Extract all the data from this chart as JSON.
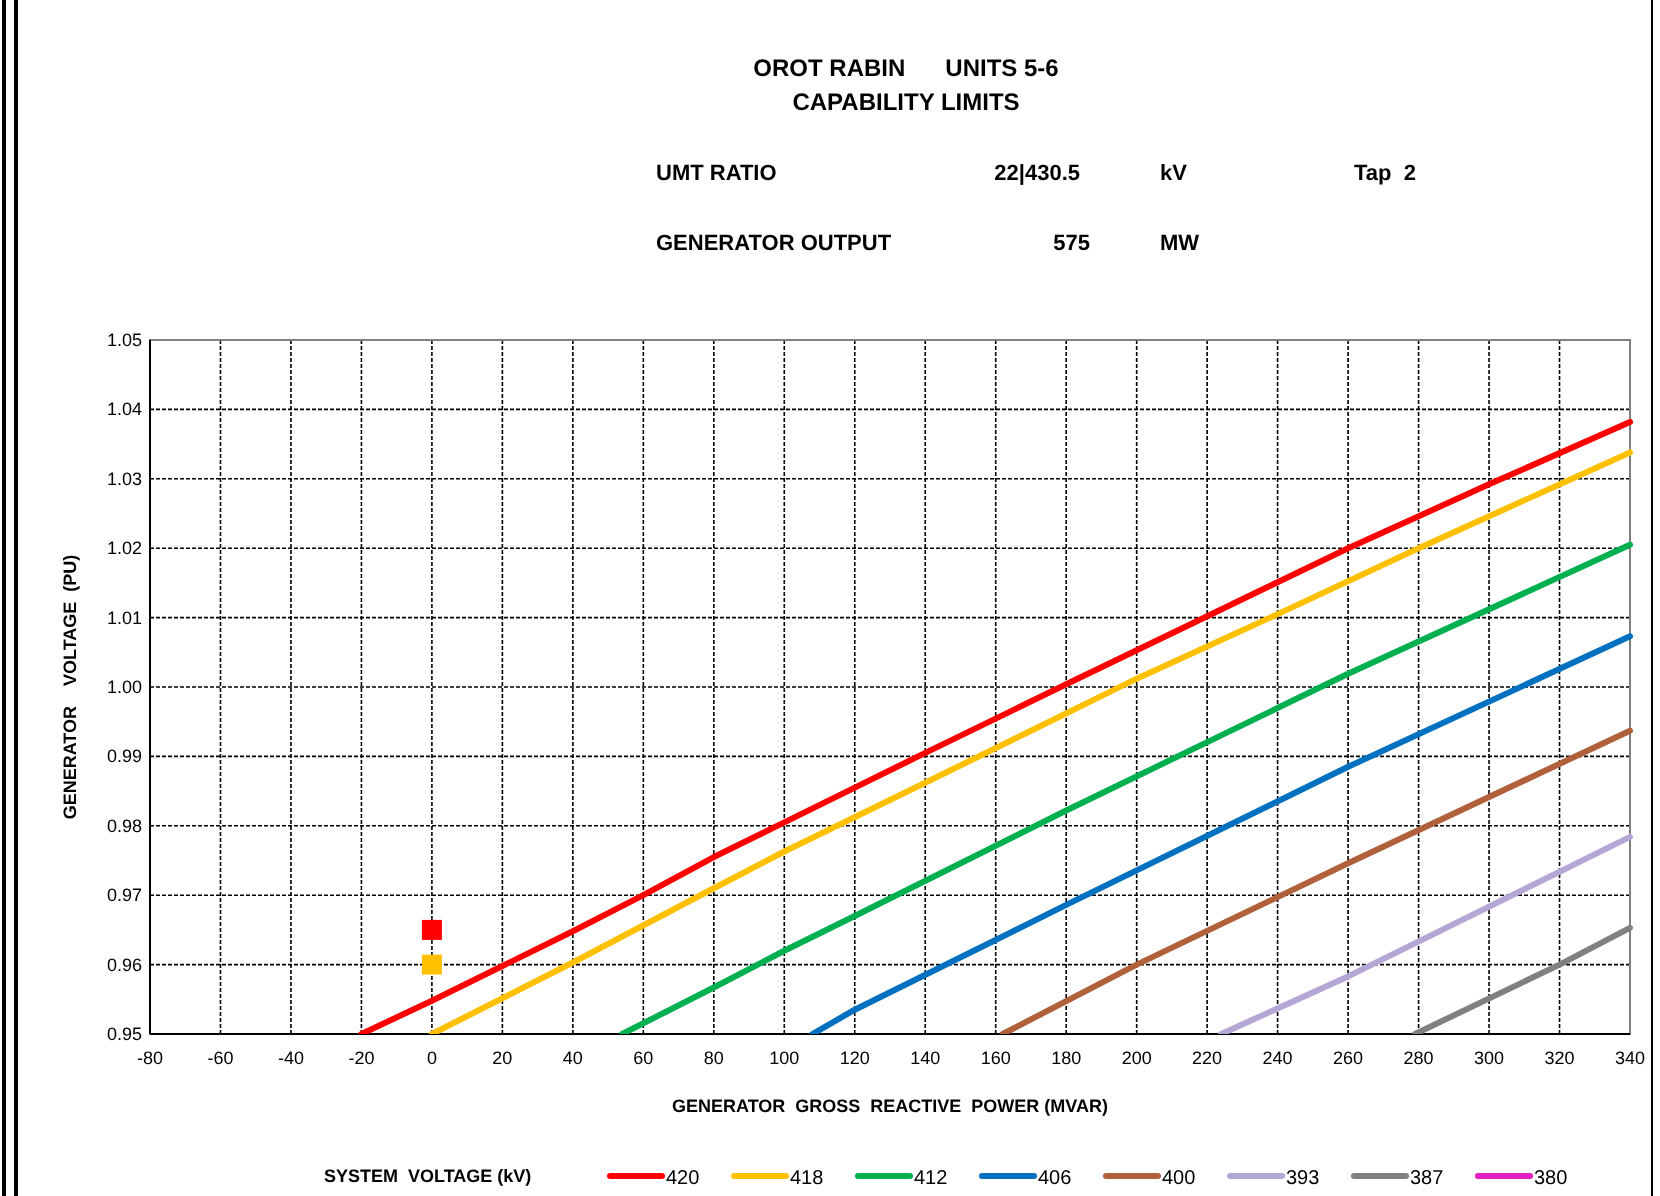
{
  "chart_data": {
    "type": "line",
    "title": "OROT RABIN      UNITS 5-6",
    "subtitle": "CAPABILITY LIMITS",
    "annotations": [
      "UMT RATIO",
      "22|430.5",
      "kV",
      "Tap  2",
      "GENERATOR OUTPUT",
      "575",
      "MW"
    ],
    "xlabel": "GENERATOR  GROSS  REACTIVE  POWER (MVAR)",
    "ylabel": "GENERATOR    VOLTAGE  (PU)",
    "legend_title": "SYSTEM  VOLTAGE (kV)",
    "xlim": [
      -80,
      340
    ],
    "xticks": [
      -80,
      -60,
      -40,
      -20,
      0,
      20,
      40,
      60,
      80,
      100,
      120,
      140,
      160,
      180,
      200,
      220,
      240,
      260,
      280,
      300,
      320,
      340
    ],
    "ylim": [
      0.95,
      1.05
    ],
    "yticks": [
      {
        "value": 0.95,
        "label": "0.95"
      },
      {
        "value": 0.96,
        "label": "0.96"
      },
      {
        "value": 0.97,
        "label": "0.97"
      },
      {
        "value": 0.98,
        "label": "0.98"
      },
      {
        "value": 0.99,
        "label": "0.99"
      },
      {
        "value": 1.0,
        "label": "1.00"
      },
      {
        "value": 1.01,
        "label": "1.01"
      },
      {
        "value": 1.02,
        "label": "1.02"
      },
      {
        "value": 1.03,
        "label": "1.03"
      },
      {
        "value": 1.04,
        "label": "1.04"
      },
      {
        "value": 1.05,
        "label": "1.05"
      }
    ],
    "grid": true,
    "legend": "bottom",
    "line_style": "solid",
    "marker": "none",
    "series": [
      {
        "name": "420",
        "color": "#ff0000",
        "x": [
          -20,
          0,
          20,
          40,
          60,
          80,
          100,
          140,
          180,
          220,
          260,
          300,
          340
        ],
        "values": [
          0.95,
          0.9548,
          0.9598,
          0.9648,
          0.97,
          0.9755,
          0.9805,
          0.9905,
          1.0004,
          1.0102,
          1.02,
          1.0292,
          1.0382
        ]
      },
      {
        "name": "418",
        "color": "#ffc000",
        "x": [
          0,
          40,
          80,
          100,
          140,
          200,
          240,
          280,
          340
        ],
        "values": [
          0.95,
          0.9603,
          0.971,
          0.9763,
          0.9862,
          1.0012,
          1.0105,
          1.02,
          1.0338
        ]
      },
      {
        "name": "412",
        "color": "#00b050",
        "x": [
          54,
          80,
          100,
          120,
          180,
          260,
          340
        ],
        "values": [
          0.95,
          0.9567,
          0.962,
          0.967,
          0.9822,
          1.0019,
          1.0205
        ]
      },
      {
        "name": "406",
        "color": "#0070c0",
        "x": [
          108,
          120,
          180,
          260,
          340
        ],
        "values": [
          0.95,
          0.9535,
          0.9686,
          0.9885,
          1.0073
        ]
      },
      {
        "name": "400",
        "color": "#b0603a",
        "x": [
          162,
          200,
          260,
          340
        ],
        "values": [
          0.95,
          0.96,
          0.9746,
          0.9937
        ]
      },
      {
        "name": "393",
        "color": "#b4a7d6",
        "x": [
          224,
          260,
          340
        ],
        "values": [
          0.95,
          0.9583,
          0.9784
        ]
      },
      {
        "name": "387",
        "color": "#808080",
        "x": [
          279,
          320,
          340
        ],
        "values": [
          0.95,
          0.96,
          0.9653
        ]
      },
      {
        "name": "380",
        "color": "#e020c0"
      },
      {
        "type": "scatter",
        "marker": "square",
        "color": "#ff0000",
        "x": [
          0
        ],
        "values": [
          0.965
        ]
      },
      {
        "type": "scatter",
        "marker": "square",
        "color": "#ffc000",
        "x": [
          0
        ],
        "values": [
          0.96
        ]
      }
    ]
  }
}
